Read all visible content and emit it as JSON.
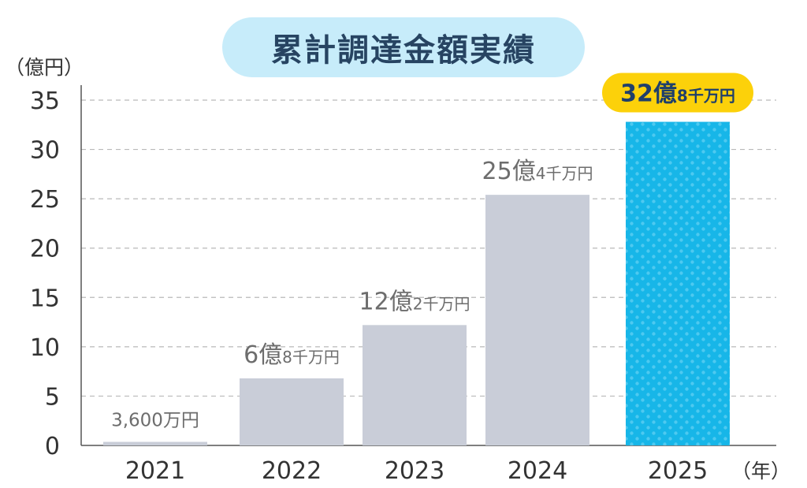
{
  "chart_data": {
    "type": "bar",
    "title": "累計調達金額実績",
    "y_unit": "（億円）",
    "x_unit": "（年）",
    "categories": [
      "2021",
      "2022",
      "2023",
      "2024",
      "2025"
    ],
    "values": [
      0.36,
      6.8,
      12.2,
      25.4,
      32.8
    ],
    "value_labels": [
      {
        "main": "3,600万円",
        "sub": ""
      },
      {
        "main": "6億",
        "sub": "8千万円"
      },
      {
        "main": "12億",
        "sub": "2千万円"
      },
      {
        "main": "25億",
        "sub": "4千万円"
      },
      {
        "main": "32億",
        "sub": "8千万円"
      }
    ],
    "highlight_index": 4,
    "ylim": [
      0,
      35
    ],
    "yticks": [
      0,
      5,
      10,
      15,
      20,
      25,
      30,
      35
    ],
    "grid": true,
    "grid_style": "dashed",
    "colors": {
      "bar": "#c9cdd8",
      "highlight_bar": "#17b6e8",
      "highlight_dots": "#4ec9f0",
      "highlight_badge": "#fcd10a",
      "highlight_label": "#1f3f6b",
      "label": "#6d6d6d",
      "grid": "#b9b9b9",
      "title_bg": "#c7ecfa",
      "title_text": "#274462"
    }
  }
}
